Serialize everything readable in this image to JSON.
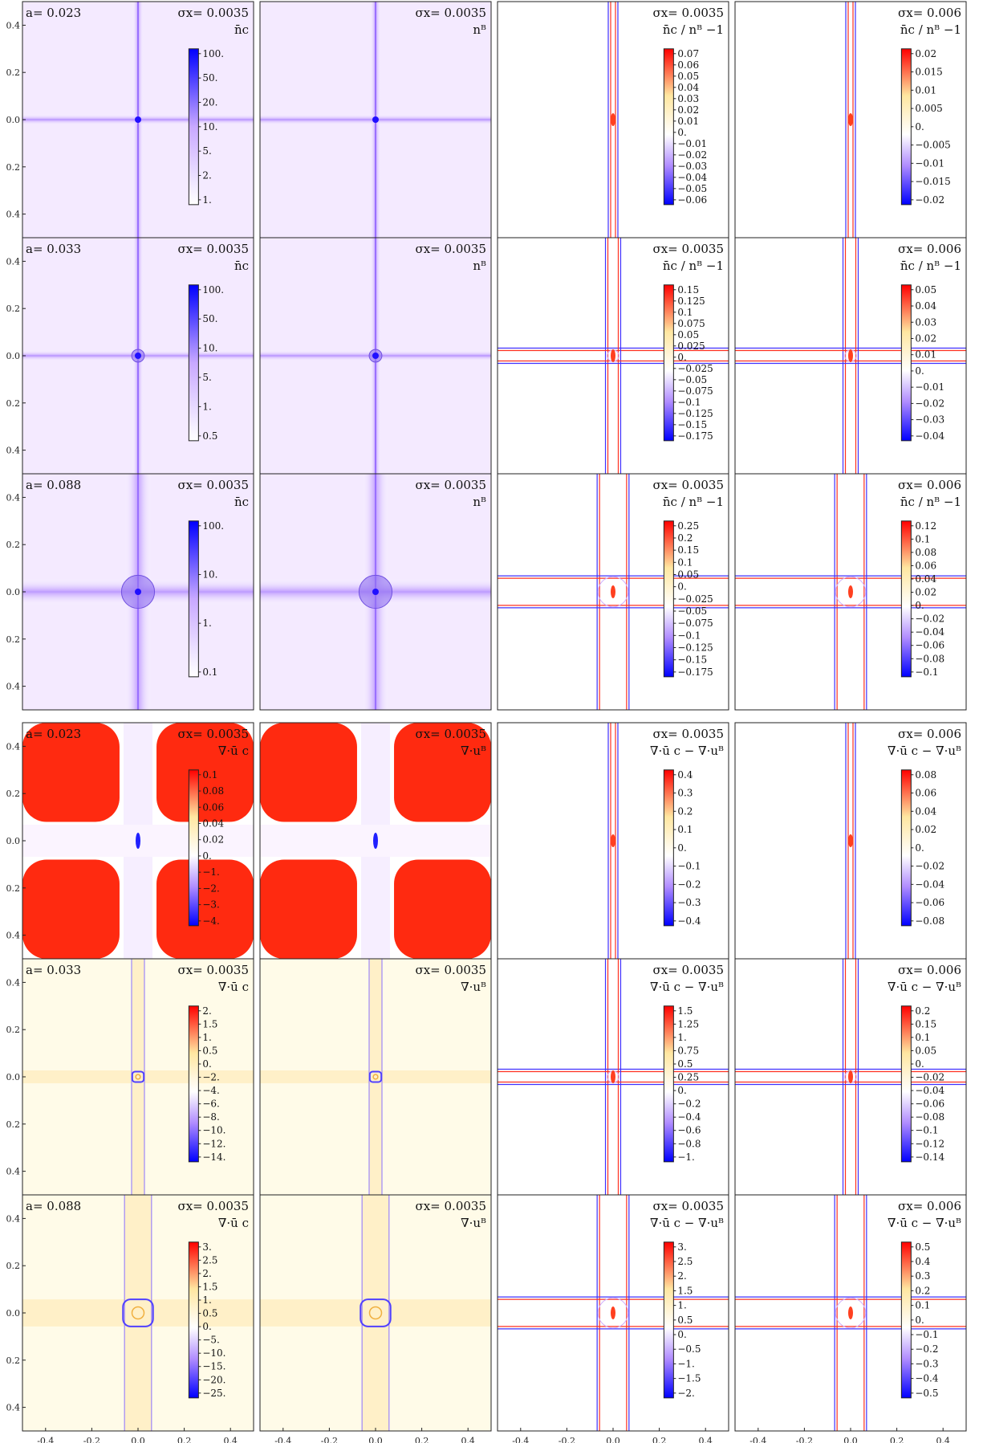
{
  "chart_data": {
    "type": "heatmap",
    "description_layout": "two blocks of 3x4 map panels sharing x range [-0.5,0.5] and y range [-0.5,0.5]",
    "xlim": [
      -0.5,
      0.5
    ],
    "ylim": [
      -0.5,
      0.5
    ],
    "x_ticks": [
      "-0.4",
      "-0.2",
      "0.0",
      "0.2",
      "0.4"
    ],
    "y_ticks": [
      "0.4",
      "0.2",
      "0.0",
      "0.2",
      "0.4"
    ],
    "colors": {
      "low": "#0000ff",
      "mid": "#ffffff",
      "mid_high": "#ffe8a0",
      "high": "#ff0000",
      "density_mid": "#a070ff"
    },
    "blocks": [
      {
        "rows": [
          {
            "a_label": "a= 0.023",
            "panels": [
              {
                "sigma": "σx= 0.0035",
                "quantity": "n̄c",
                "kind": "density",
                "size": 0.02,
                "cb_ticks": [
                  "100.",
                  "50.",
                  "20.",
                  "10.",
                  "5.",
                  "2.",
                  "1."
                ]
              },
              {
                "sigma": "σx= 0.0035",
                "quantity": "nᴮ",
                "kind": "density",
                "size": 0.02,
                "cb_ticks": []
              },
              {
                "sigma": "σx= 0.0035",
                "quantity": "n̄c / nᴮ −1",
                "kind": "diff",
                "size": 0.02,
                "cb_ticks": [
                  "0.07",
                  "0.06",
                  "0.05",
                  "0.04",
                  "0.03",
                  "0.02",
                  "0.01",
                  "0.",
                  "−0.01",
                  "−0.02",
                  "−0.03",
                  "−0.04",
                  "−0.05",
                  "−0.06"
                ]
              },
              {
                "sigma": "σx= 0.006",
                "quantity": "n̄c / nᴮ −1",
                "kind": "diff",
                "size": 0.02,
                "cb_ticks": [
                  "0.02",
                  "0.015",
                  "0.01",
                  "0.005",
                  "0.",
                  "−0.005",
                  "−0.01",
                  "−0.015",
                  "−0.02"
                ]
              }
            ]
          },
          {
            "a_label": "a= 0.033",
            "panels": [
              {
                "sigma": "σx= 0.0035",
                "quantity": "n̄c",
                "kind": "density",
                "size": 0.05,
                "cb_ticks": [
                  "100.",
                  "50.",
                  "10.",
                  "5.",
                  "1.",
                  "0.5"
                ]
              },
              {
                "sigma": "σx= 0.0035",
                "quantity": "nᴮ",
                "kind": "density",
                "size": 0.05,
                "cb_ticks": []
              },
              {
                "sigma": "σx= 0.0035",
                "quantity": "n̄c / nᴮ −1",
                "kind": "diff",
                "size": 0.05,
                "cb_ticks": [
                  "0.15",
                  "0.125",
                  "0.1",
                  "0.075",
                  "0.05",
                  "0.025",
                  "0.",
                  "−0.025",
                  "−0.05",
                  "−0.075",
                  "−0.1",
                  "−0.125",
                  "−0.15",
                  "−0.175"
                ]
              },
              {
                "sigma": "σx= 0.006",
                "quantity": "n̄c / nᴮ −1",
                "kind": "diff",
                "size": 0.05,
                "cb_ticks": [
                  "0.05",
                  "0.04",
                  "0.03",
                  "0.02",
                  "0.01",
                  "0.",
                  "−0.01",
                  "−0.02",
                  "−0.03",
                  "−0.04"
                ]
              }
            ]
          },
          {
            "a_label": "a= 0.088",
            "panels": [
              {
                "sigma": "σx= 0.0035",
                "quantity": "n̄c",
                "kind": "density",
                "size": 0.13,
                "cb_ticks": [
                  "100.",
                  "10.",
                  "1.",
                  "0.1"
                ]
              },
              {
                "sigma": "σx= 0.0035",
                "quantity": "nᴮ",
                "kind": "density",
                "size": 0.13,
                "cb_ticks": []
              },
              {
                "sigma": "σx= 0.0035",
                "quantity": "n̄c / nᴮ −1",
                "kind": "diff",
                "size": 0.13,
                "cb_ticks": [
                  "0.25",
                  "0.2",
                  "0.15",
                  "0.1",
                  "0.05",
                  "0.",
                  "−0.025",
                  "−0.05",
                  "−0.075",
                  "−0.1",
                  "−0.125",
                  "−0.15",
                  "−0.175"
                ]
              },
              {
                "sigma": "σx= 0.006",
                "quantity": "n̄c / nᴮ −1",
                "kind": "diff",
                "size": 0.13,
                "cb_ticks": [
                  "0.12",
                  "0.1",
                  "0.08",
                  "0.06",
                  "0.04",
                  "0.02",
                  "0.",
                  "−0.02",
                  "−0.04",
                  "−0.06",
                  "−0.08",
                  "−0.1"
                ]
              }
            ]
          }
        ]
      },
      {
        "rows": [
          {
            "a_label": "a= 0.023",
            "panels": [
              {
                "sigma": "σx= 0.0035",
                "quantity": "∇·ū c",
                "kind": "divergence",
                "size": 0.02,
                "cb_ticks": [
                  "0.1",
                  "0.08",
                  "0.06",
                  "0.04",
                  "0.02",
                  "0.",
                  "−1.",
                  "−2.",
                  "−3.",
                  "−4."
                ]
              },
              {
                "sigma": "σx= 0.0035",
                "quantity": "∇·uᴮ",
                "kind": "divergence",
                "size": 0.02,
                "cb_ticks": []
              },
              {
                "sigma": "σx= 0.0035",
                "quantity": "∇·ū c − ∇·uᴮ",
                "kind": "diff",
                "size": 0.02,
                "cb_ticks": [
                  "0.4",
                  "0.3",
                  "0.2",
                  "0.1",
                  "0.",
                  "−0.1",
                  "−0.2",
                  "−0.3",
                  "−0.4"
                ]
              },
              {
                "sigma": "σx= 0.006",
                "quantity": "∇·ū c − ∇·uᴮ",
                "kind": "diff",
                "size": 0.02,
                "cb_ticks": [
                  "0.08",
                  "0.06",
                  "0.04",
                  "0.02",
                  "0.",
                  "−0.02",
                  "−0.04",
                  "−0.06",
                  "−0.08"
                ]
              }
            ]
          },
          {
            "a_label": "a= 0.033",
            "panels": [
              {
                "sigma": "σx= 0.0035",
                "quantity": "∇·ū c",
                "kind": "divergence2",
                "size": 0.05,
                "cb_ticks": [
                  "2.",
                  "1.5",
                  "1.",
                  "0.5",
                  "0.",
                  "−2.",
                  "−4.",
                  "−6.",
                  "−8.",
                  "−10.",
                  "−12.",
                  "−14."
                ]
              },
              {
                "sigma": "σx= 0.0035",
                "quantity": "∇·uᴮ",
                "kind": "divergence2",
                "size": 0.05,
                "cb_ticks": []
              },
              {
                "sigma": "σx= 0.0035",
                "quantity": "∇·ū c − ∇·uᴮ",
                "kind": "diff",
                "size": 0.05,
                "cb_ticks": [
                  "1.5",
                  "1.25",
                  "1.",
                  "0.75",
                  "0.5",
                  "0.25",
                  "0.",
                  "−0.2",
                  "−0.4",
                  "−0.6",
                  "−0.8",
                  "−1."
                ]
              },
              {
                "sigma": "σx= 0.006",
                "quantity": "∇·ū c − ∇·uᴮ",
                "kind": "diff",
                "size": 0.05,
                "cb_ticks": [
                  "0.2",
                  "0.15",
                  "0.1",
                  "0.05",
                  "0.",
                  "−0.02",
                  "−0.04",
                  "−0.06",
                  "−0.08",
                  "−0.1",
                  "−0.12",
                  "−0.14"
                ]
              }
            ]
          },
          {
            "a_label": "a= 0.088",
            "panels": [
              {
                "sigma": "σx= 0.0035",
                "quantity": "∇·ū c",
                "kind": "divergence2",
                "size": 0.13,
                "cb_ticks": [
                  "3.",
                  "2.5",
                  "2.",
                  "1.5",
                  "1.",
                  "0.5",
                  "0.",
                  "−5.",
                  "−10.",
                  "−15.",
                  "−20.",
                  "−25."
                ]
              },
              {
                "sigma": "σx= 0.0035",
                "quantity": "∇·uᴮ",
                "kind": "divergence2",
                "size": 0.13,
                "cb_ticks": []
              },
              {
                "sigma": "σx= 0.0035",
                "quantity": "∇·ū c − ∇·uᴮ",
                "kind": "diff",
                "size": 0.13,
                "cb_ticks": [
                  "3.",
                  "2.5",
                  "2.",
                  "1.5",
                  "1.",
                  "0.5",
                  "0.",
                  "−0.5",
                  "−1.",
                  "−1.5",
                  "−2."
                ]
              },
              {
                "sigma": "σx= 0.006",
                "quantity": "∇·ū c − ∇·uᴮ",
                "kind": "diff",
                "size": 0.13,
                "cb_ticks": [
                  "0.5",
                  "0.4",
                  "0.3",
                  "0.2",
                  "0.1",
                  "0.",
                  "−0.1",
                  "−0.2",
                  "−0.3",
                  "−0.4",
                  "−0.5"
                ]
              }
            ]
          }
        ]
      }
    ]
  }
}
